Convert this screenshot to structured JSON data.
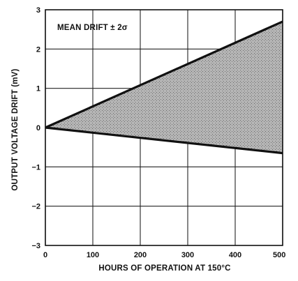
{
  "chart_data": {
    "type": "area",
    "annotation": "MEAN DRIFT ± 2σ",
    "xlabel": "HOURS OF OPERATION AT 150°C",
    "ylabel": "OUTPUT VOLTAGE DRIFT (mV)",
    "xlim": [
      0,
      500
    ],
    "ylim": [
      -3,
      3
    ],
    "xticks": [
      0,
      100,
      200,
      300,
      400,
      500
    ],
    "xtick_labels": [
      "0",
      "100",
      "200",
      "300",
      "400",
      "500"
    ],
    "yticks": [
      3,
      2,
      1,
      0,
      -1,
      -2,
      -3
    ],
    "ytick_labels": [
      "3",
      "2",
      "1",
      "0",
      "−1",
      "−2",
      "−3"
    ],
    "grid": true,
    "series": [
      {
        "x": [
          0,
          500
        ],
        "values": [
          0,
          2.7
        ]
      },
      {
        "x": [
          0,
          500
        ],
        "values": [
          0,
          -0.65
        ]
      }
    ],
    "fill_between": true,
    "colors": {
      "band_fill": "#8f8f8f",
      "line": "#111111",
      "grid": "#222222"
    }
  }
}
